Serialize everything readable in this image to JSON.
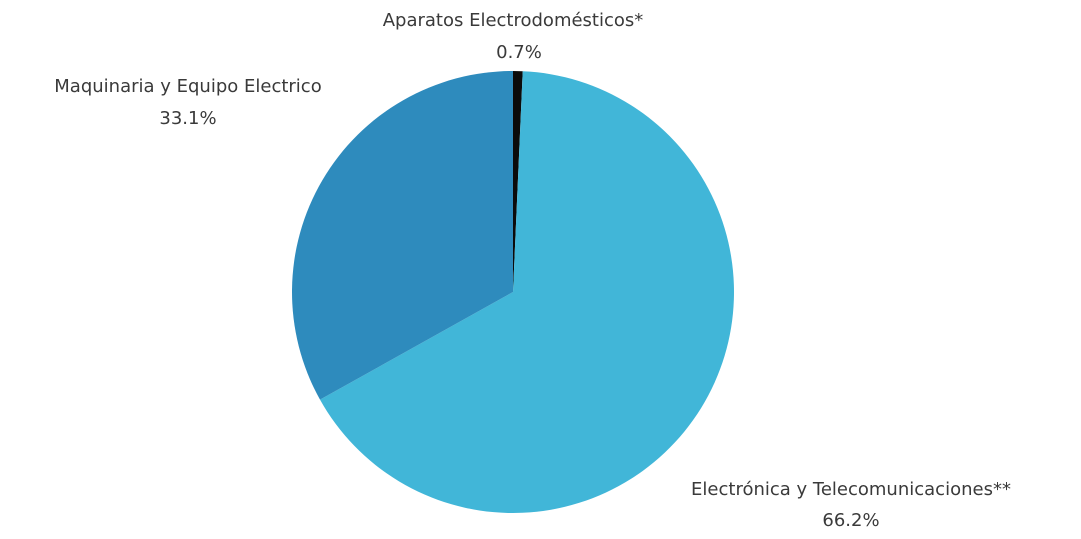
{
  "chart_data": {
    "type": "pie",
    "slices": [
      {
        "label": "Aparatos Electrodomésticos*",
        "value": 0.7,
        "display": "0.7%",
        "color": "#0b0b0b"
      },
      {
        "label": "Electrónica y Telecomunicaciones**",
        "value": 66.2,
        "display": "66.2%",
        "color": "#41b6d8"
      },
      {
        "label": "Maquinaria y Equipo Electrico",
        "value": 33.1,
        "display": "33.1%",
        "color": "#2e8bbd"
      }
    ],
    "start_angle": "top",
    "direction": "clockwise",
    "labels": "outside with percentage below"
  }
}
